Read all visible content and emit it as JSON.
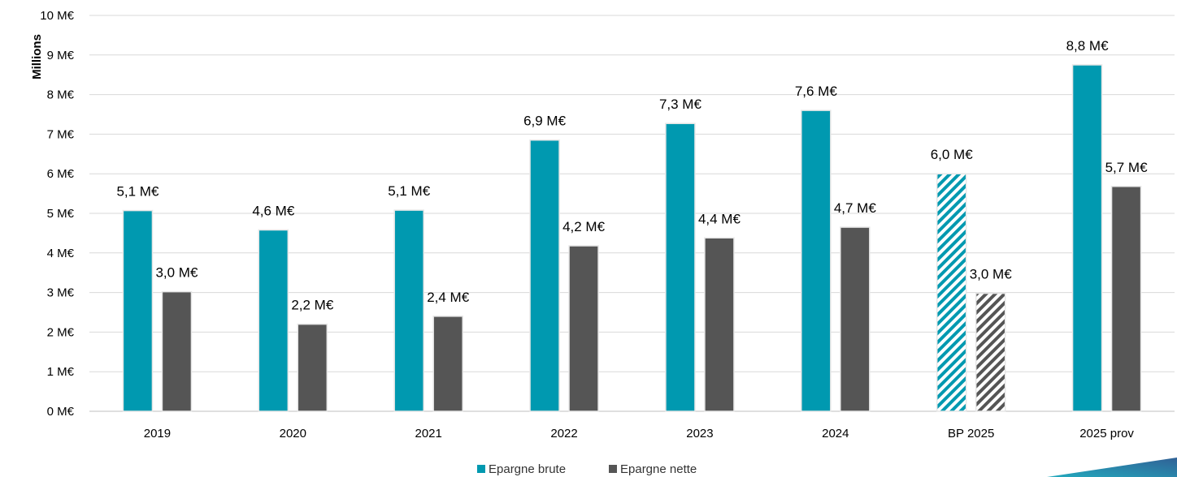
{
  "chart_data": {
    "type": "bar",
    "ylabel": "Millions",
    "ylim": [
      0,
      10
    ],
    "yticks": [
      "0 M€",
      "1 M€",
      "2 M€",
      "3 M€",
      "4 M€",
      "5 M€",
      "6 M€",
      "7 M€",
      "8 M€",
      "9 M€",
      "10 M€"
    ],
    "grid": true,
    "legend_position": "bottom-center",
    "categories": [
      "2019",
      "2020",
      "2021",
      "2022",
      "2023",
      "2024",
      "BP 2025",
      "2025 prov"
    ],
    "hatched_categories": [
      "BP 2025"
    ],
    "series": [
      {
        "name": "Epargne brute",
        "color": "#0099b0",
        "values": [
          5.07,
          4.58,
          5.08,
          6.85,
          7.27,
          7.6,
          6.0,
          8.75
        ],
        "labels": [
          "5,1 M€",
          "4,6 M€",
          "5,1 M€",
          "6,9 M€",
          "7,3 M€",
          "7,6 M€",
          "6,0 M€",
          "8,8 M€"
        ]
      },
      {
        "name": "Epargne nette",
        "color": "#555555",
        "values": [
          3.02,
          2.2,
          2.4,
          4.18,
          4.38,
          4.65,
          2.98,
          5.68
        ],
        "labels": [
          "3,0 M€",
          "2,2 M€",
          "2,4 M€",
          "4,2 M€",
          "4,4 M€",
          "4,7 M€",
          "3,0 M€",
          "5,7 M€"
        ]
      }
    ]
  }
}
